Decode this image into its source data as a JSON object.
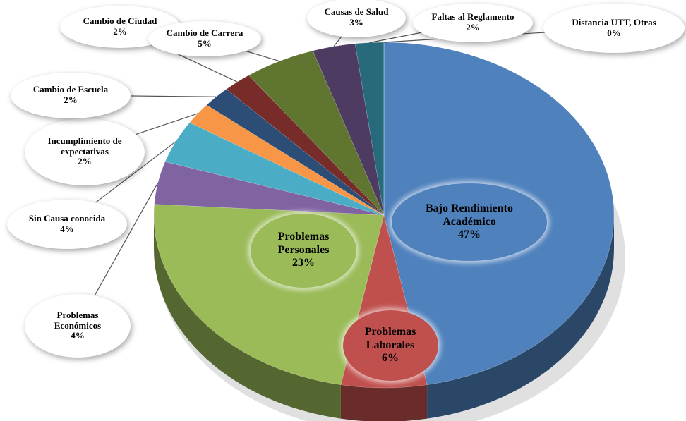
{
  "chart_data": {
    "type": "pie3d",
    "categories": [
      "Bajo Rendimiento Académico",
      "Problemas Laborales",
      "Problemas Personales",
      "Problemas Económicos",
      "Sin Causa conocida",
      "Incumplimiento de expectativas",
      "Cambio de Escuela",
      "Cambio de Ciudad",
      "Cambio de Carrera",
      "Causas de Salud",
      "Faltas al Reglamento",
      "Distancia UTT, Otras"
    ],
    "values": [
      47,
      6,
      23,
      4,
      4,
      2,
      2,
      2,
      5,
      3,
      2,
      0
    ],
    "value_labels": [
      "47%",
      "6%",
      "23%",
      "4%",
      "4%",
      "2%",
      "2%",
      "2%",
      "5%",
      "3%",
      "2%",
      "0%"
    ],
    "colors": [
      "#4f81bd",
      "#c0504d",
      "#9bbb59",
      "#8064a2",
      "#4bacc6",
      "#f79646",
      "#2c4d75",
      "#772c2a",
      "#5f7530",
      "#4d3b62",
      "#276a7c",
      "#b65708"
    ]
  }
}
